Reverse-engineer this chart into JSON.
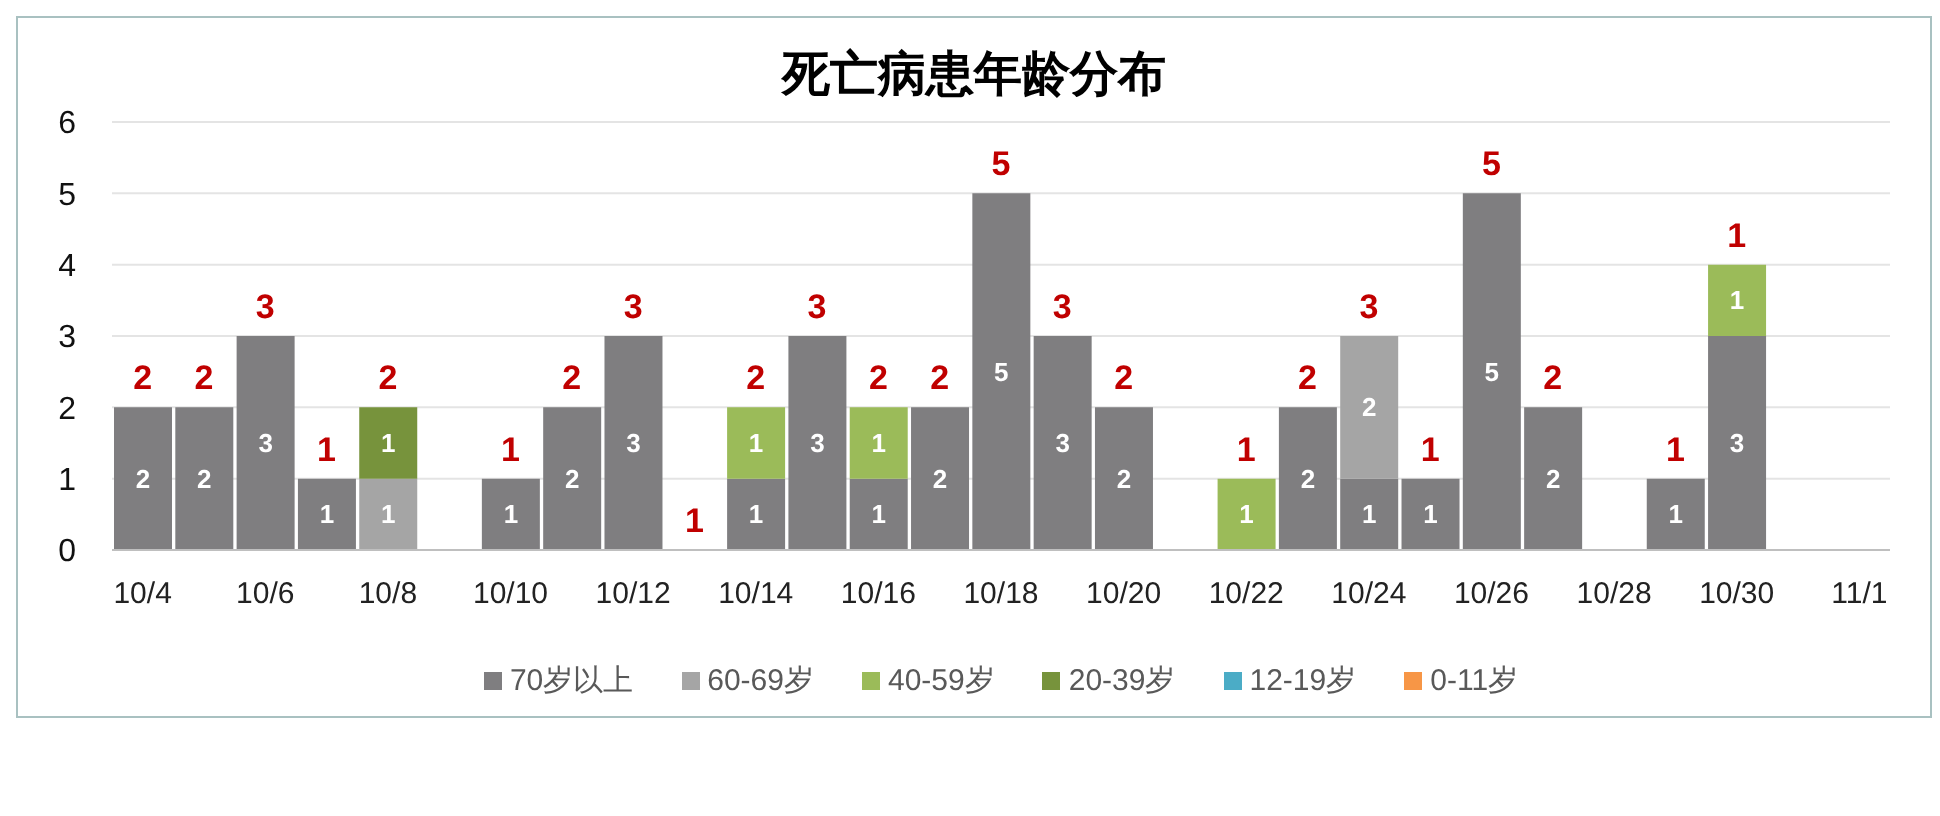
{
  "chart_data": {
    "type": "bar",
    "title": "死亡病患年龄分布",
    "categories": [
      "10/4",
      null,
      "10/6",
      null,
      "10/8",
      null,
      "10/10",
      null,
      "10/12",
      null,
      "10/14",
      null,
      "10/16",
      null,
      "10/18",
      null,
      "10/20",
      null,
      "10/22",
      null,
      "10/24",
      null,
      "10/26",
      null,
      "10/28",
      null,
      "10/30",
      null,
      "11/1"
    ],
    "series": [
      {
        "name": "70岁以上",
        "color": "#7f7e80",
        "values": [
          2,
          2,
          3,
          1,
          null,
          null,
          1,
          2,
          3,
          null,
          1,
          3,
          1,
          2,
          5,
          3,
          2,
          null,
          null,
          2,
          1,
          1,
          5,
          2,
          null,
          1,
          3,
          null,
          null
        ]
      },
      {
        "name": "60-69岁",
        "color": "#a5a5a5",
        "values": [
          null,
          null,
          null,
          null,
          1,
          null,
          null,
          null,
          null,
          null,
          null,
          null,
          null,
          null,
          null,
          null,
          null,
          null,
          null,
          null,
          2,
          null,
          null,
          null,
          null,
          null,
          null,
          null,
          null
        ]
      },
      {
        "name": "40-59岁",
        "color": "#9bbb59",
        "values": [
          null,
          null,
          null,
          null,
          null,
          null,
          null,
          null,
          null,
          null,
          1,
          null,
          1,
          null,
          null,
          null,
          null,
          null,
          1,
          null,
          null,
          null,
          null,
          null,
          null,
          null,
          1,
          null,
          null
        ]
      },
      {
        "name": "20-39岁",
        "color": "#77933c",
        "values": [
          null,
          null,
          null,
          null,
          1,
          null,
          null,
          null,
          null,
          null,
          null,
          null,
          null,
          null,
          null,
          null,
          null,
          null,
          null,
          null,
          null,
          null,
          null,
          null,
          null,
          null,
          null,
          null,
          null
        ]
      },
      {
        "name": "12-19岁",
        "color": "#4bacc6",
        "values": [
          null,
          null,
          null,
          null,
          null,
          null,
          null,
          null,
          null,
          null,
          null,
          null,
          null,
          null,
          null,
          null,
          null,
          null,
          null,
          null,
          null,
          null,
          null,
          null,
          null,
          null,
          null,
          null,
          null
        ]
      },
      {
        "name": "0-11岁",
        "color": "#f79646",
        "values": [
          null,
          null,
          null,
          null,
          null,
          null,
          null,
          null,
          null,
          null,
          null,
          null,
          null,
          null,
          null,
          null,
          null,
          null,
          null,
          null,
          null,
          null,
          null,
          null,
          null,
          null,
          null,
          null,
          null
        ]
      }
    ],
    "stacked": true,
    "ylim": [
      0,
      6
    ],
    "yticks": [
      0,
      1,
      2,
      3,
      4,
      5,
      6
    ],
    "grid": "y",
    "legend": "bottom",
    "data_labels": true,
    "totals": [
      "2",
      "2",
      "3",
      "1",
      "2",
      null,
      "1",
      "2",
      "3",
      "1",
      "2",
      "3",
      "2",
      "2",
      "5",
      "3",
      "2",
      null,
      "1",
      "2",
      "3",
      "1",
      "5",
      "2",
      null,
      "1",
      "1",
      null,
      null
    ]
  }
}
